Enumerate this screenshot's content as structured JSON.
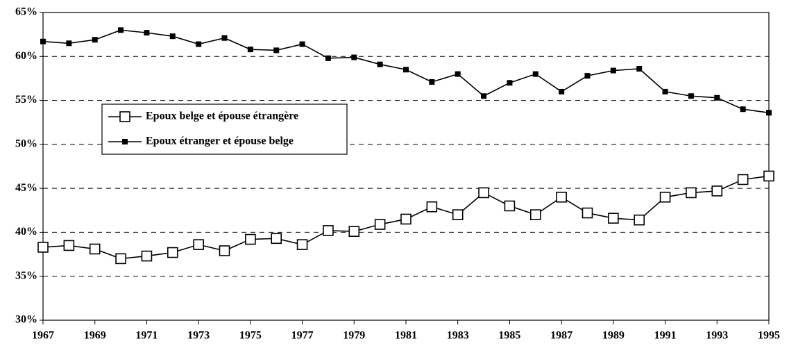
{
  "chart_data": {
    "type": "line",
    "x": [
      1967,
      1968,
      1969,
      1970,
      1971,
      1972,
      1973,
      1974,
      1975,
      1976,
      1977,
      1978,
      1979,
      1980,
      1981,
      1982,
      1983,
      1984,
      1985,
      1986,
      1987,
      1988,
      1989,
      1990,
      1991,
      1992,
      1993,
      1994,
      1995
    ],
    "series": [
      {
        "name": "Epoux belge et épouse étrangère",
        "color": "#000000",
        "marker": "open-square",
        "values": [
          38.3,
          38.5,
          38.1,
          37.0,
          37.3,
          37.7,
          38.6,
          37.9,
          39.2,
          39.3,
          38.6,
          40.2,
          40.1,
          40.9,
          41.5,
          42.9,
          42.0,
          44.5,
          43.0,
          42.0,
          44.0,
          42.2,
          41.6,
          41.4,
          44.0,
          44.5,
          44.7,
          46.0,
          46.4
        ]
      },
      {
        "name": "Epoux étranger et épouse belge",
        "color": "#000000",
        "marker": "filled-square",
        "values": [
          61.7,
          61.5,
          61.9,
          63.0,
          62.7,
          62.3,
          61.4,
          62.1,
          60.8,
          60.7,
          61.4,
          59.8,
          59.9,
          59.1,
          58.5,
          57.1,
          58.0,
          55.5,
          57.0,
          58.0,
          56.0,
          57.8,
          58.4,
          58.6,
          56.0,
          55.5,
          55.3,
          54.0,
          53.6
        ]
      }
    ],
    "xlim": [
      1967,
      1995
    ],
    "xticks": [
      1967,
      1969,
      1971,
      1973,
      1975,
      1977,
      1979,
      1981,
      1983,
      1985,
      1987,
      1989,
      1991,
      1993,
      1995
    ],
    "ylim": [
      30,
      65
    ],
    "yticks": [
      {
        "value": 30,
        "label": "30%"
      },
      {
        "value": 35,
        "label": "35%"
      },
      {
        "value": 40,
        "label": "40%"
      },
      {
        "value": 45,
        "label": "45%"
      },
      {
        "value": 50,
        "label": "50%"
      },
      {
        "value": 55,
        "label": "55%"
      },
      {
        "value": 60,
        "label": "60%"
      },
      {
        "value": 65,
        "label": "65%"
      }
    ],
    "grid": true
  }
}
